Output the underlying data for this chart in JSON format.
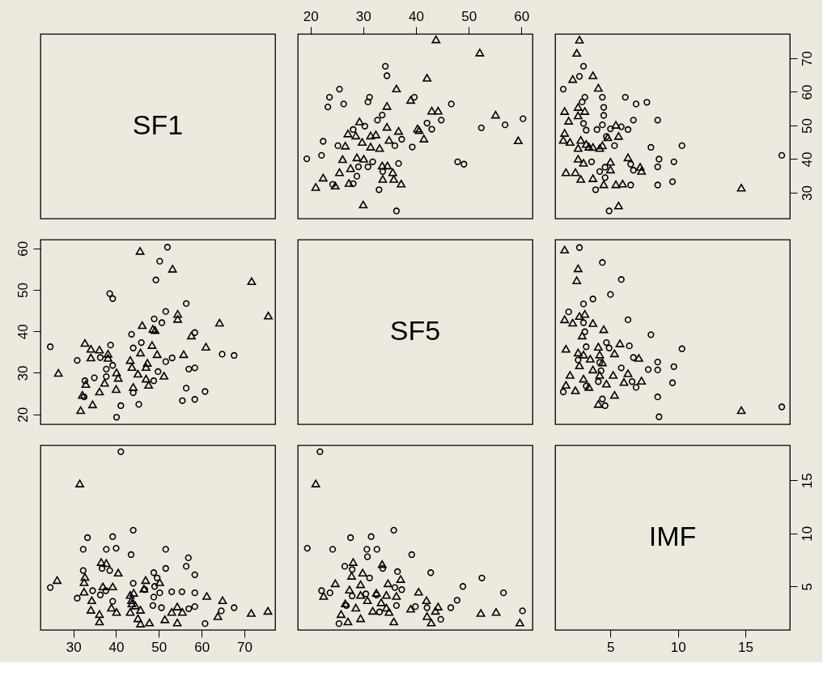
{
  "chart_data": [
    {
      "type": "other",
      "annotations": [
        "SF1"
      ]
    },
    {
      "type": "scatter",
      "xlim": [
        17.6,
        62.1
      ],
      "ylim": [
        22.3,
        77.2
      ],
      "xticks": [
        20,
        30,
        40,
        50,
        60
      ],
      "tick_labels": "x",
      "series": [
        {
          "color": "#000000",
          "marker": "circle",
          "x": [
            34.2,
            34.5,
            25.5,
            23.6,
            23.3,
            26.3,
            31.2,
            30.9,
            39.7,
            46.7,
            33.6,
            32.7,
            44.8,
            42.1,
            43.0,
            30.3,
            28.1,
            52.4,
            56.9,
            60.3,
            22.4,
            25.2,
            37.3,
            36.0,
            39.3,
            19.3,
            22.1,
            31.8,
            30.9,
            29.1,
            36.7,
            33.7,
            47.9,
            49.1,
            28.8,
            24.2,
            28.1,
            33.0,
            36.3
          ],
          "values": [
            67.6,
            64.8,
            60.8,
            58.4,
            55.5,
            56.4,
            58.4,
            57.0,
            58.4,
            56.4,
            53.1,
            51.6,
            51.6,
            50.7,
            48.9,
            49.8,
            48.8,
            49.3,
            50.2,
            52.0,
            45.3,
            44.0,
            45.9,
            44.0,
            43.6,
            40.1,
            41.1,
            39.2,
            37.7,
            37.7,
            38.7,
            36.3,
            39.2,
            38.5,
            34.9,
            32.5,
            32.7,
            30.9,
            24.6
          ]
        },
        {
          "color": "#000000",
          "marker": "triangle",
          "x": [
            43.8,
            52.1,
            42.1,
            36.3,
            39.0,
            34.5,
            43.0,
            44.2,
            55.1,
            59.4,
            29.3,
            34.5,
            36.7,
            40.3,
            40.6,
            41.5,
            27.1,
            28.6,
            31.4,
            32.4,
            29.8,
            34.9,
            31.4,
            33.1,
            26.6,
            26.1,
            28.8,
            30.1,
            33.6,
            34.6,
            35.6,
            25.5,
            27.6,
            22.4,
            21.0,
            24.7,
            27.3,
            33.7,
            35.8,
            37.2,
            30.0
          ],
          "values": [
            75.6,
            71.7,
            64.2,
            61.0,
            57.6,
            55.8,
            54.4,
            54.4,
            53.2,
            45.6,
            51.2,
            49.6,
            48.4,
            49.1,
            48.6,
            46.1,
            47.6,
            47.0,
            47.0,
            47.3,
            45.1,
            45.7,
            43.7,
            43.3,
            44.0,
            40.0,
            40.5,
            40.1,
            38.1,
            38.1,
            36.1,
            36.1,
            37.3,
            34.5,
            31.7,
            32.1,
            32.9,
            34.1,
            34.1,
            32.7,
            26.5
          ]
        }
      ]
    },
    {
      "type": "scatter",
      "xlim": [
        0.9,
        18.3
      ],
      "ylim": [
        22.3,
        77.2
      ],
      "yticks": [
        30,
        40,
        50,
        60,
        70
      ],
      "tick_labels": "y",
      "series": [
        {
          "color": "#000000",
          "marker": "circle",
          "x": [
            3.0,
            2.7,
            1.5,
            3.1,
            2.9,
            4.4,
            4.5,
            4.5,
            6.1,
            6.9,
            7.7,
            6.7,
            8.5,
            4.4,
            4.0,
            5.0,
            5.8,
            6.3,
            3.2,
            3.0,
            4.7,
            5.3,
            8.0,
            10.3,
            8.6,
            9.7,
            8.5,
            6.7,
            6.5,
            3.6,
            4.2,
            4.6,
            4.6,
            3.9,
            6.5,
            8.5,
            9.6,
            4.9,
            17.7
          ],
          "values": [
            67.6,
            64.6,
            60.8,
            58.4,
            57.0,
            58.4,
            55.4,
            53.0,
            58.4,
            56.4,
            56.9,
            51.6,
            51.6,
            50.2,
            48.8,
            49.0,
            49.6,
            48.8,
            48.6,
            50.6,
            46.7,
            44.0,
            43.5,
            44.0,
            40.0,
            39.2,
            37.7,
            36.7,
            38.5,
            39.2,
            36.3,
            37.6,
            34.5,
            30.9,
            32.3,
            32.3,
            33.3,
            24.6,
            41.1
          ]
        },
        {
          "color": "#000000",
          "marker": "triangle",
          "x": [
            2.7,
            2.5,
            2.2,
            3.7,
            4.1,
            1.6,
            2.6,
            3.1,
            2.6,
            1.9,
            1.6,
            1.5,
            2.0,
            2.8,
            2.6,
            3.4,
            3.7,
            4.2,
            2.6,
            3.0,
            1.7,
            2.4,
            2.8,
            3.7,
            4.5,
            5.0,
            5.0,
            5.4,
            5.6,
            4.8,
            4.4,
            5.4,
            5.9,
            6.3,
            7.2,
            7.3,
            5.6,
            14.7,
            3.2
          ],
          "values": [
            75.5,
            71.6,
            63.8,
            64.9,
            61.2,
            54.3,
            55.5,
            54.3,
            53.0,
            51.4,
            47.8,
            45.7,
            45.1,
            45.7,
            43.3,
            43.7,
            43.6,
            43.3,
            40.1,
            38.9,
            36.1,
            36.1,
            34.1,
            34.3,
            32.5,
            39.2,
            36.9,
            50.2,
            46.9,
            46.5,
            44.1,
            32.5,
            32.7,
            40.5,
            37.7,
            36.5,
            26.2,
            31.5,
            44.5
          ]
        }
      ]
    },
    {
      "type": "scatter",
      "xlim": [
        22.3,
        77.2
      ],
      "ylim": [
        17.6,
        62.1
      ],
      "yticks": [
        20,
        30,
        40,
        50,
        60
      ],
      "tick_labels": "y",
      "series": [
        {
          "color": "#000000",
          "marker": "circle",
          "values": [
            34.2,
            34.5,
            25.5,
            23.6,
            23.3,
            26.3,
            31.2,
            30.9,
            39.7,
            46.7,
            33.6,
            32.7,
            44.8,
            42.1,
            43.0,
            30.3,
            28.1,
            52.4,
            56.9,
            60.3,
            22.4,
            25.2,
            37.3,
            36.0,
            39.3,
            19.3,
            22.1,
            31.8,
            30.9,
            29.1,
            36.7,
            33.7,
            47.9,
            49.1,
            28.8,
            24.2,
            28.1,
            33.0,
            36.3
          ],
          "x": [
            67.6,
            64.8,
            60.8,
            58.4,
            55.5,
            56.4,
            58.4,
            57.0,
            58.4,
            56.4,
            53.1,
            51.6,
            51.6,
            50.7,
            48.9,
            49.8,
            48.8,
            49.3,
            50.2,
            52.0,
            45.3,
            44.0,
            45.9,
            44.0,
            43.6,
            40.1,
            41.1,
            39.2,
            37.7,
            37.7,
            38.7,
            36.3,
            39.2,
            38.5,
            34.9,
            32.5,
            32.7,
            30.9,
            24.6
          ]
        },
        {
          "color": "#000000",
          "marker": "triangle",
          "values": [
            43.8,
            52.1,
            42.1,
            36.3,
            39.0,
            34.5,
            43.0,
            44.2,
            55.1,
            59.4,
            29.3,
            34.5,
            36.7,
            40.3,
            40.6,
            41.5,
            27.1,
            28.6,
            31.4,
            32.4,
            29.8,
            34.9,
            31.4,
            33.1,
            26.6,
            26.1,
            28.8,
            30.1,
            33.6,
            34.6,
            35.6,
            25.5,
            27.6,
            22.4,
            21.0,
            24.7,
            27.3,
            33.7,
            35.8,
            37.2,
            30.0
          ],
          "x": [
            75.6,
            71.7,
            64.2,
            61.0,
            57.6,
            55.8,
            54.4,
            54.4,
            53.2,
            45.6,
            51.2,
            49.6,
            48.4,
            49.1,
            48.6,
            46.1,
            47.6,
            47.0,
            47.0,
            47.3,
            45.1,
            45.7,
            43.7,
            43.3,
            44.0,
            40.0,
            40.5,
            40.1,
            38.1,
            38.1,
            36.1,
            36.1,
            37.3,
            34.5,
            31.7,
            32.1,
            32.9,
            34.1,
            34.1,
            32.7,
            26.5
          ]
        }
      ]
    },
    {
      "type": "other",
      "annotations": [
        "SF5"
      ]
    },
    {
      "type": "scatter",
      "xlim": [
        0.9,
        18.3
      ],
      "ylim": [
        17.6,
        62.1
      ],
      "tick_labels": false,
      "series": [
        {
          "color": "#000000",
          "marker": "circle",
          "x": [
            2.7,
            4.4,
            5.8,
            5.0,
            3.7,
            3.0,
            1.9,
            3.0,
            3.1,
            6.3,
            8.0,
            3.2,
            4.7,
            6.4,
            10.3,
            4.9,
            6.7,
            2.6,
            4.2,
            8.5,
            9.7,
            7.8,
            8.5,
            5.8,
            4.3,
            4.1,
            6.6,
            6.9,
            9.6,
            3.2,
            1.5,
            4.4,
            4.6,
            8.5,
            8.6,
            17.7
          ],
          "values": [
            60.2,
            56.6,
            52.5,
            48.9,
            47.8,
            46.6,
            44.7,
            42.1,
            39.9,
            42.8,
            39.2,
            36.3,
            37.3,
            36.5,
            35.8,
            36.0,
            33.7,
            33.1,
            32.5,
            32.6,
            31.5,
            30.8,
            30.7,
            31.2,
            30.5,
            27.9,
            27.9,
            26.5,
            27.6,
            26.8,
            25.4,
            23.7,
            22.1,
            24.2,
            19.4,
            21.8
          ]
        },
        {
          "color": "#000000",
          "marker": "triangle",
          "x": [
            1.6,
            2.6,
            2.5,
            1.6,
            2.2,
            2.7,
            3.1,
            3.7,
            4.5,
            2.9,
            1.7,
            2.6,
            3.0,
            4.1,
            3.5,
            4.2,
            5.3,
            5.7,
            7.1,
            2.7,
            3.7,
            4.4,
            2.0,
            3.0,
            1.7,
            2.4,
            3.4,
            4.2,
            4.7,
            5.2,
            6.0,
            6.3,
            7.3,
            4.1,
            5.3,
            14.7
          ],
          "values": [
            59.7,
            55.2,
            52.3,
            42.9,
            42.1,
            43.7,
            44.2,
            42.0,
            40.5,
            39.0,
            35.8,
            34.9,
            34.4,
            36.3,
            33.4,
            34.4,
            34.7,
            37.1,
            33.6,
            31.8,
            30.8,
            32.5,
            29.5,
            28.6,
            27.1,
            25.8,
            26.6,
            29.5,
            27.4,
            29.5,
            27.8,
            29.9,
            28.1,
            22.5,
            24.7,
            21.0
          ]
        }
      ]
    },
    {
      "type": "scatter",
      "xlim": [
        22.3,
        77.2
      ],
      "ylim": [
        0.9,
        18.3
      ],
      "xticks": [
        30,
        40,
        50,
        60,
        70
      ],
      "tick_labels": "x",
      "series": [
        {
          "color": "#000000",
          "marker": "circle",
          "values": [
            3.0,
            2.7,
            1.5,
            3.1,
            2.9,
            4.4,
            4.5,
            4.5,
            6.1,
            6.9,
            7.7,
            6.7,
            8.5,
            4.4,
            4.0,
            5.0,
            5.8,
            6.3,
            3.2,
            3.0,
            4.7,
            5.3,
            8.0,
            10.3,
            8.6,
            9.7,
            8.5,
            6.7,
            6.5,
            3.6,
            4.2,
            4.6,
            4.6,
            3.9,
            6.5,
            8.5,
            9.6,
            4.9,
            17.7
          ],
          "x": [
            67.6,
            64.6,
            60.8,
            58.4,
            57.0,
            58.4,
            55.4,
            53.0,
            58.4,
            56.4,
            56.9,
            51.6,
            51.6,
            50.2,
            48.8,
            49.0,
            49.6,
            48.8,
            48.6,
            50.6,
            46.7,
            44.0,
            43.5,
            44.0,
            40.0,
            39.2,
            37.7,
            36.7,
            38.5,
            39.2,
            36.3,
            37.6,
            34.5,
            30.9,
            32.3,
            32.3,
            33.3,
            24.6,
            41.1
          ]
        },
        {
          "color": "#000000",
          "marker": "triangle",
          "values": [
            2.7,
            2.5,
            2.2,
            3.7,
            4.1,
            1.6,
            2.6,
            3.1,
            2.6,
            1.9,
            1.6,
            1.5,
            2.0,
            2.8,
            2.6,
            3.4,
            3.7,
            4.2,
            2.6,
            3.0,
            1.7,
            2.4,
            2.8,
            3.7,
            4.5,
            5.0,
            5.0,
            5.4,
            5.6,
            4.8,
            4.4,
            5.4,
            5.9,
            6.3,
            7.2,
            7.3,
            5.6,
            14.7,
            3.2
          ],
          "x": [
            75.5,
            71.6,
            63.8,
            64.9,
            61.2,
            54.3,
            55.5,
            54.3,
            53.0,
            51.4,
            47.8,
            45.7,
            45.1,
            45.7,
            43.3,
            43.7,
            43.6,
            43.3,
            40.1,
            38.9,
            36.1,
            36.1,
            34.1,
            34.3,
            32.5,
            39.2,
            36.9,
            50.2,
            46.9,
            46.5,
            44.1,
            32.5,
            32.7,
            40.5,
            37.7,
            36.5,
            26.2,
            31.5,
            44.5
          ]
        }
      ]
    },
    {
      "type": "scatter",
      "xlim": [
        17.6,
        62.1
      ],
      "ylim": [
        0.9,
        18.3
      ],
      "tick_labels": false,
      "series": [
        {
          "color": "#000000",
          "marker": "circle",
          "values": [
            2.7,
            4.4,
            5.8,
            5.0,
            3.7,
            3.0,
            1.9,
            3.0,
            3.1,
            6.3,
            8.0,
            3.2,
            4.7,
            6.4,
            10.3,
            4.9,
            6.7,
            2.6,
            4.2,
            8.5,
            9.7,
            7.8,
            8.5,
            5.8,
            4.3,
            4.1,
            6.6,
            6.9,
            9.6,
            3.2,
            1.5,
            4.4,
            4.6,
            8.5,
            8.6,
            17.7
          ],
          "x": [
            60.2,
            56.6,
            52.5,
            48.9,
            47.8,
            46.6,
            44.7,
            42.1,
            39.9,
            42.8,
            39.2,
            36.3,
            37.3,
            36.5,
            35.8,
            36.0,
            33.7,
            33.1,
            32.5,
            32.6,
            31.5,
            30.8,
            30.7,
            31.2,
            30.5,
            27.9,
            27.9,
            26.5,
            27.6,
            26.8,
            25.4,
            23.7,
            22.1,
            24.2,
            19.4,
            21.8
          ]
        },
        {
          "color": "#000000",
          "marker": "triangle",
          "values": [
            1.6,
            2.6,
            2.5,
            1.6,
            2.2,
            2.7,
            3.1,
            3.7,
            4.5,
            2.9,
            1.7,
            2.6,
            3.0,
            4.1,
            3.5,
            4.2,
            5.3,
            5.7,
            7.1,
            2.7,
            3.7,
            4.4,
            2.0,
            3.0,
            1.7,
            2.4,
            3.4,
            4.2,
            4.7,
            5.2,
            6.0,
            6.3,
            7.3,
            4.1,
            5.3,
            14.7
          ],
          "x": [
            59.7,
            55.2,
            52.3,
            42.9,
            42.1,
            43.7,
            44.2,
            42.0,
            40.5,
            39.0,
            35.8,
            34.9,
            34.4,
            36.3,
            33.4,
            34.4,
            34.7,
            37.1,
            33.6,
            31.8,
            30.8,
            32.5,
            29.5,
            28.6,
            27.1,
            25.8,
            26.6,
            29.5,
            27.4,
            29.5,
            27.8,
            29.9,
            28.1,
            22.5,
            24.7,
            21.0
          ]
        }
      ]
    },
    {
      "type": "scatter",
      "annotations": [
        "IMF"
      ],
      "xlim": [
        0.9,
        18.3
      ],
      "ylim": [
        0.9,
        18.3
      ],
      "xticks": [
        5,
        10,
        15
      ],
      "yticks": [
        5,
        10,
        15
      ]
    }
  ]
}
